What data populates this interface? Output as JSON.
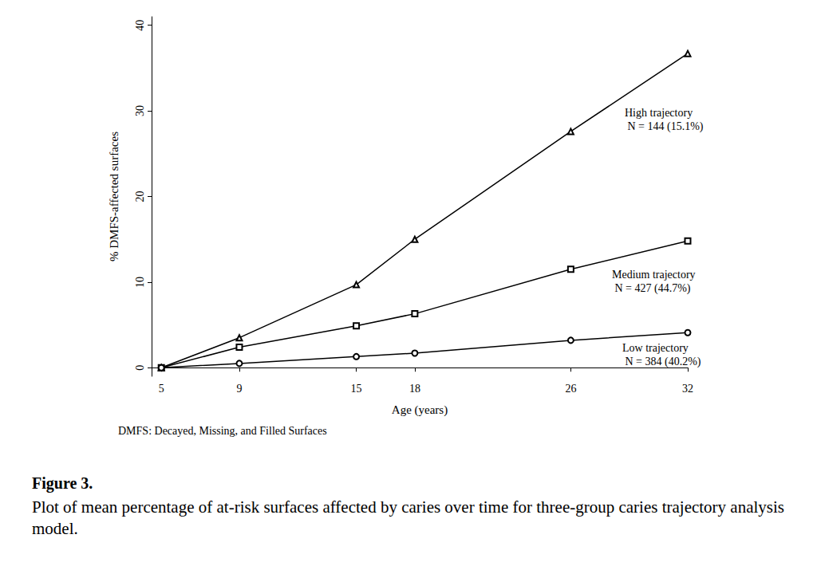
{
  "chart_data": {
    "type": "line",
    "title": "Figure 3.",
    "caption": "Plot of mean percentage of at-risk surfaces affected by caries over time for three-group caries trajectory analysis model.",
    "note": "DMFS: Decayed, Missing, and Filled Surfaces",
    "x_label": "Age (years)",
    "y_label": "% DMFS-affected surfaces",
    "x": [
      5,
      9,
      15,
      18,
      26,
      32
    ],
    "series": [
      {
        "name": "High trajectory",
        "annotation": "N = 144 (15.1%)",
        "color": "#000000",
        "marker": "triangle",
        "values": [
          0,
          3.5,
          9.7,
          15.0,
          27.6,
          36.7
        ]
      },
      {
        "name": "Medium trajectory",
        "annotation": "N = 427 (44.7%)",
        "color": "#000000",
        "marker": "square",
        "values": [
          0,
          2.4,
          4.9,
          6.3,
          11.5,
          14.8
        ]
      },
      {
        "name": "Low trajectory",
        "annotation": "N = 384 (40.2%)",
        "color": "#000000",
        "marker": "circle",
        "values": [
          0,
          0.5,
          1.3,
          1.7,
          3.2,
          4.1
        ]
      }
    ],
    "xlim": [
      4.5,
      32
    ],
    "xticks": [
      5,
      9,
      15,
      18,
      26,
      32
    ],
    "ylim": [
      -1,
      41
    ],
    "yticks": [
      0,
      10,
      20,
      30,
      40
    ],
    "grid": false
  }
}
